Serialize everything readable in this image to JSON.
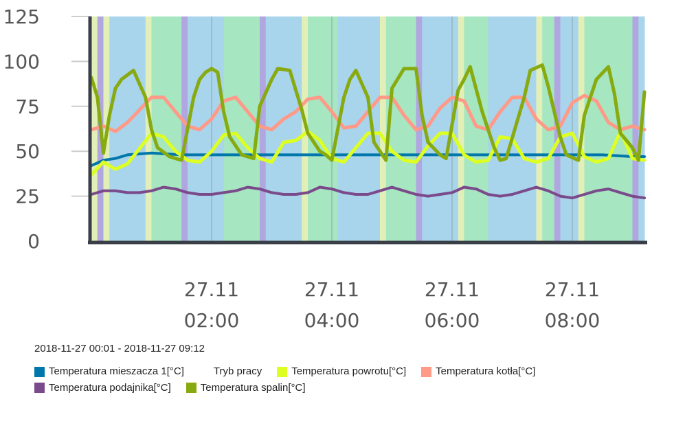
{
  "date_range": "2018-11-27 00:01 - 2018-11-27 09:12",
  "colors": {
    "mixer": "#0077aa",
    "return": "#ddff22",
    "boiler": "#ff9988",
    "feeder": "#7a4a8a",
    "flue": "#88aa11",
    "mode_standby": "#a8d4ec",
    "mode_work": "#a6e6c0",
    "mode_fire": "#e2f0b8",
    "mode_other": "#b0a6e0"
  },
  "legend": [
    {
      "label": "Temperatura mieszacza 1[°C]",
      "color": "#0077aa"
    },
    {
      "label": "Tryb pracy",
      "color": ""
    },
    {
      "label": "Temperatura powrotu[°C]",
      "color": "#ddff22"
    },
    {
      "label": "Temperatura kotła[°C]",
      "color": "#ff9988"
    },
    {
      "label": "Temperatura podajnika[°C]",
      "color": "#7a4a8a"
    },
    {
      "label": "Temperatura spalin[°C]",
      "color": "#88aa11"
    }
  ],
  "chart_data": {
    "type": "line",
    "x_unit": "hours since 2018-11-27 00:00",
    "xlim": [
      0,
      9.2
    ],
    "ylim": [
      0,
      125
    ],
    "yticks": [
      "0",
      "25",
      "50",
      "75",
      "100",
      "125"
    ],
    "ytick_values": [
      0,
      25,
      50,
      75,
      100,
      125
    ],
    "xticks": [
      {
        "x": 2,
        "line1": "27.11",
        "line2": "02:00"
      },
      {
        "x": 4,
        "line1": "27.11",
        "line2": "04:00"
      },
      {
        "x": 6,
        "line1": "27.11",
        "line2": "06:00"
      },
      {
        "x": 8,
        "line1": "27.11",
        "line2": "08:00"
      }
    ],
    "bands": [
      {
        "from": 0.0,
        "to": 0.1,
        "mode": "fire"
      },
      {
        "from": 0.1,
        "to": 0.2,
        "mode": "other"
      },
      {
        "from": 0.2,
        "to": 0.3,
        "mode": "fire"
      },
      {
        "from": 0.3,
        "to": 0.9,
        "mode": "standby"
      },
      {
        "from": 0.9,
        "to": 1.0,
        "mode": "fire"
      },
      {
        "from": 1.0,
        "to": 1.5,
        "mode": "work"
      },
      {
        "from": 1.5,
        "to": 1.6,
        "mode": "other"
      },
      {
        "from": 1.6,
        "to": 2.2,
        "mode": "standby"
      },
      {
        "from": 2.2,
        "to": 2.8,
        "mode": "work"
      },
      {
        "from": 2.8,
        "to": 2.9,
        "mode": "other"
      },
      {
        "from": 2.9,
        "to": 3.5,
        "mode": "standby"
      },
      {
        "from": 3.5,
        "to": 3.6,
        "mode": "fire"
      },
      {
        "from": 3.6,
        "to": 4.1,
        "mode": "work"
      },
      {
        "from": 4.1,
        "to": 4.8,
        "mode": "standby"
      },
      {
        "from": 4.8,
        "to": 4.9,
        "mode": "fire"
      },
      {
        "from": 4.9,
        "to": 5.4,
        "mode": "work"
      },
      {
        "from": 5.4,
        "to": 5.5,
        "mode": "other"
      },
      {
        "from": 5.5,
        "to": 6.1,
        "mode": "standby"
      },
      {
        "from": 6.1,
        "to": 6.2,
        "mode": "fire"
      },
      {
        "from": 6.2,
        "to": 6.6,
        "mode": "work"
      },
      {
        "from": 6.6,
        "to": 7.4,
        "mode": "standby"
      },
      {
        "from": 7.4,
        "to": 7.5,
        "mode": "fire"
      },
      {
        "from": 7.5,
        "to": 7.7,
        "mode": "work"
      },
      {
        "from": 7.7,
        "to": 7.8,
        "mode": "other"
      },
      {
        "from": 7.8,
        "to": 8.1,
        "mode": "standby"
      },
      {
        "from": 8.1,
        "to": 8.2,
        "mode": "fire"
      },
      {
        "from": 8.2,
        "to": 9.0,
        "mode": "work"
      },
      {
        "from": 9.0,
        "to": 9.1,
        "mode": "other"
      },
      {
        "from": 9.1,
        "to": 9.2,
        "mode": "standby"
      }
    ],
    "series": [
      {
        "name": "Temperatura mieszacza 1[°C]",
        "key": "mixer",
        "x": [
          0,
          0.2,
          0.4,
          0.6,
          1.0,
          1.5,
          2.0,
          2.5,
          3.0,
          3.5,
          4.0,
          4.5,
          5.0,
          5.5,
          6.0,
          6.5,
          7.0,
          7.5,
          8.0,
          8.5,
          9.0,
          9.2
        ],
        "y": [
          42,
          45,
          46,
          48,
          49,
          48,
          48,
          48,
          48,
          48,
          48,
          48,
          48,
          48,
          48,
          48,
          48,
          48,
          48,
          48,
          47,
          47
        ]
      },
      {
        "name": "Temperatura powrotu[°C]",
        "key": "return",
        "x": [
          0,
          0.2,
          0.4,
          0.6,
          1.0,
          1.2,
          1.4,
          1.6,
          1.8,
          2.0,
          2.2,
          2.4,
          2.6,
          2.8,
          3.0,
          3.2,
          3.4,
          3.6,
          3.8,
          4.0,
          4.2,
          4.4,
          4.6,
          4.8,
          5.0,
          5.2,
          5.4,
          5.6,
          5.8,
          6.0,
          6.2,
          6.4,
          6.6,
          6.8,
          7.0,
          7.2,
          7.4,
          7.6,
          7.8,
          8.0,
          8.2,
          8.4,
          8.6,
          8.8,
          9.0,
          9.2
        ],
        "y": [
          37,
          44,
          40,
          43,
          60,
          58,
          50,
          45,
          44,
          50,
          59,
          60,
          52,
          46,
          44,
          55,
          56,
          61,
          56,
          46,
          44,
          52,
          60,
          60,
          50,
          45,
          44,
          53,
          60,
          60,
          48,
          44,
          45,
          58,
          57,
          46,
          44,
          46,
          58,
          60,
          47,
          44,
          46,
          61,
          46,
          45
        ]
      },
      {
        "name": "Temperatura kotła[°C]",
        "key": "boiler",
        "x": [
          0,
          0.2,
          0.4,
          0.6,
          0.8,
          1.0,
          1.2,
          1.4,
          1.6,
          1.8,
          2.0,
          2.2,
          2.4,
          2.6,
          2.8,
          3.0,
          3.2,
          3.4,
          3.6,
          3.8,
          4.0,
          4.2,
          4.4,
          4.6,
          4.8,
          5.0,
          5.2,
          5.4,
          5.6,
          5.8,
          6.0,
          6.2,
          6.4,
          6.6,
          6.8,
          7.0,
          7.2,
          7.4,
          7.6,
          7.8,
          8.0,
          8.2,
          8.4,
          8.6,
          8.8,
          9.0,
          9.2
        ],
        "y": [
          62,
          64,
          61,
          66,
          73,
          80,
          80,
          72,
          64,
          62,
          68,
          78,
          80,
          72,
          64,
          62,
          68,
          72,
          79,
          80,
          72,
          63,
          64,
          72,
          80,
          80,
          70,
          62,
          64,
          74,
          80,
          78,
          64,
          62,
          72,
          80,
          80,
          68,
          62,
          64,
          77,
          81,
          78,
          66,
          62,
          64,
          62
        ]
      },
      {
        "name": "Temperatura podajnika[°C]",
        "key": "feeder",
        "x": [
          0,
          0.2,
          0.4,
          0.6,
          0.8,
          1.0,
          1.2,
          1.4,
          1.6,
          1.8,
          2.0,
          2.2,
          2.4,
          2.6,
          2.8,
          3.0,
          3.2,
          3.4,
          3.6,
          3.8,
          4.0,
          4.2,
          4.4,
          4.6,
          4.8,
          5.0,
          5.2,
          5.4,
          5.6,
          5.8,
          6.0,
          6.2,
          6.4,
          6.6,
          6.8,
          7.0,
          7.2,
          7.4,
          7.6,
          7.8,
          8.0,
          8.2,
          8.4,
          8.6,
          8.8,
          9.0,
          9.2
        ],
        "y": [
          26,
          28,
          28,
          27,
          27,
          28,
          30,
          29,
          27,
          26,
          26,
          27,
          28,
          30,
          29,
          27,
          26,
          26,
          27,
          30,
          29,
          27,
          26,
          26,
          28,
          30,
          28,
          26,
          25,
          26,
          27,
          30,
          29,
          26,
          25,
          26,
          28,
          30,
          28,
          25,
          24,
          26,
          28,
          29,
          27,
          25,
          24
        ]
      },
      {
        "name": "Temperatura spalin[°C]",
        "key": "flue",
        "x": [
          0,
          0.1,
          0.2,
          0.3,
          0.4,
          0.5,
          0.7,
          0.9,
          1.0,
          1.1,
          1.3,
          1.5,
          1.7,
          1.8,
          1.9,
          2.0,
          2.1,
          2.2,
          2.3,
          2.5,
          2.7,
          2.8,
          3.0,
          3.1,
          3.3,
          3.5,
          3.6,
          3.8,
          3.9,
          4.0,
          4.2,
          4.3,
          4.4,
          4.6,
          4.7,
          4.9,
          5.0,
          5.2,
          5.4,
          5.5,
          5.6,
          5.8,
          5.9,
          6.1,
          6.2,
          6.3,
          6.5,
          6.7,
          6.8,
          6.9,
          7.2,
          7.3,
          7.5,
          7.6,
          7.8,
          7.9,
          8.1,
          8.2,
          8.4,
          8.6,
          8.7,
          8.8,
          9.0,
          9.1,
          9.2
        ],
        "y": [
          91,
          80,
          49,
          70,
          85,
          90,
          95,
          80,
          62,
          52,
          47,
          45,
          80,
          90,
          94,
          96,
          94,
          72,
          58,
          48,
          46,
          75,
          90,
          96,
          95,
          73,
          60,
          50,
          48,
          45,
          80,
          90,
          95,
          80,
          55,
          45,
          85,
          96,
          96,
          70,
          55,
          48,
          46,
          84,
          90,
          97,
          72,
          52,
          45,
          46,
          80,
          95,
          98,
          86,
          58,
          48,
          45,
          70,
          90,
          97,
          82,
          60,
          52,
          45,
          83
        ]
      }
    ]
  }
}
